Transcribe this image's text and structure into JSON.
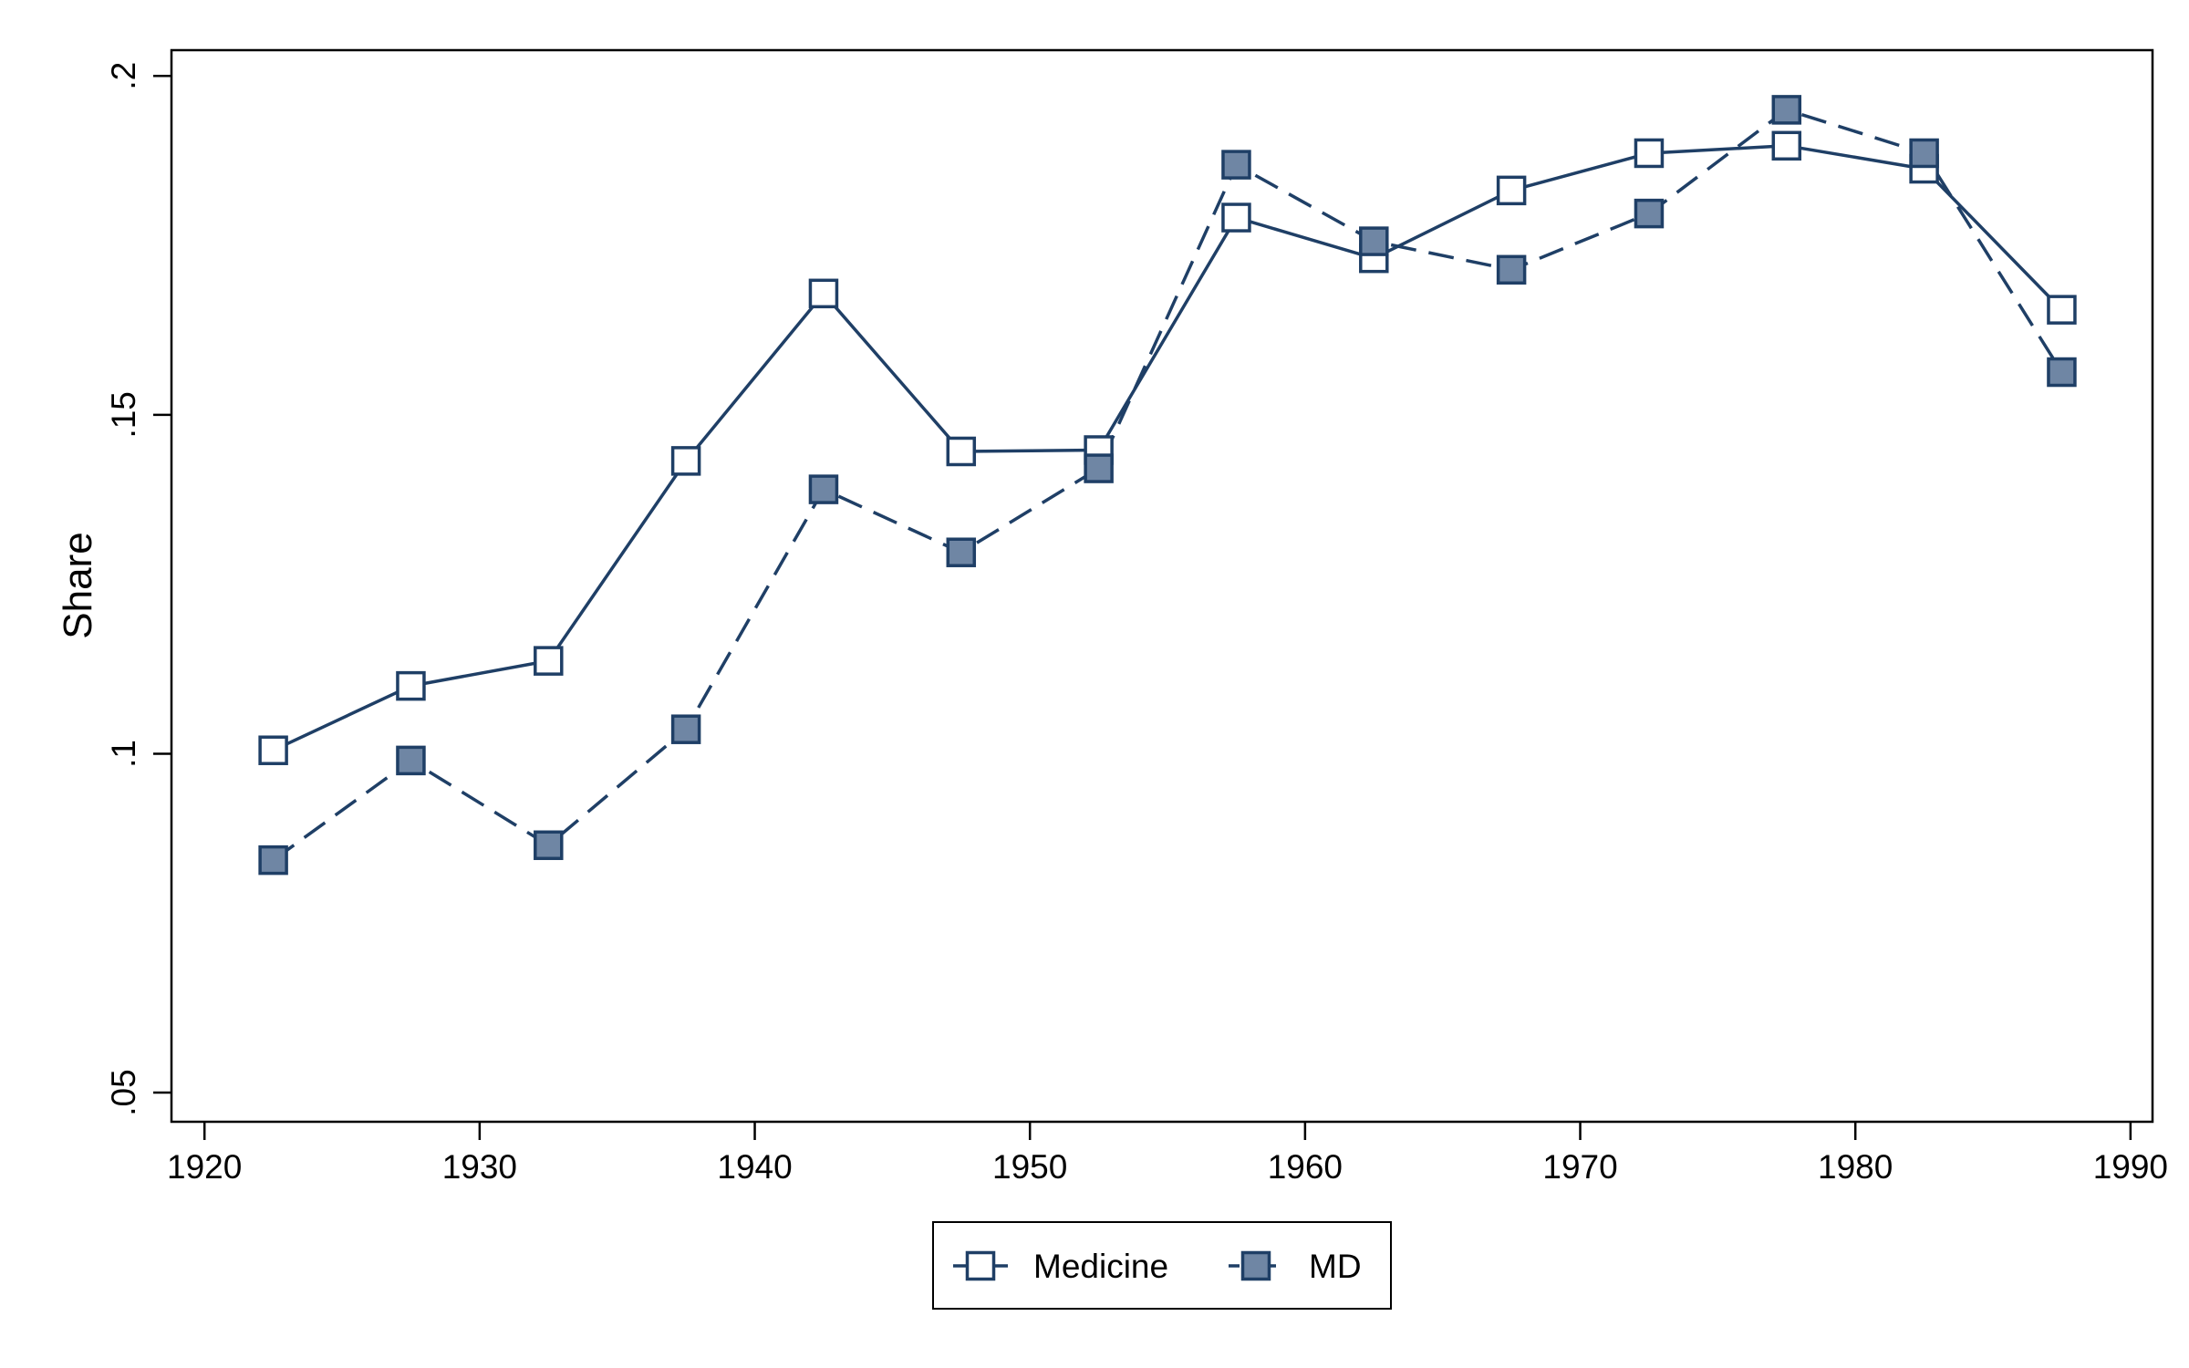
{
  "chart_data": {
    "type": "line",
    "title": "",
    "xlabel": "",
    "ylabel": "Share",
    "xlim": [
      1918.8,
      1990.8
    ],
    "ylim": [
      0.0457,
      0.2038
    ],
    "xticks": [
      1920,
      1930,
      1940,
      1950,
      1960,
      1970,
      1980,
      1990
    ],
    "xtick_labels": [
      "1920",
      "1930",
      "1940",
      "1950",
      "1960",
      "1970",
      "1980",
      "1990"
    ],
    "yticks": [
      0.05,
      0.1,
      0.15,
      0.2
    ],
    "ytick_labels": [
      ".05",
      ".1",
      ".15",
      ".2"
    ],
    "grid": false,
    "legend_position": "bottom",
    "x": [
      1922.5,
      1927.5,
      1932.5,
      1937.5,
      1942.5,
      1947.5,
      1952.5,
      1957.5,
      1962.5,
      1967.5,
      1972.5,
      1977.5,
      1982.5,
      1987.5
    ],
    "series": [
      {
        "name": "Medicine",
        "style": "solid",
        "marker": "hollow-square",
        "color": "#1f3f66",
        "values": [
          0.1005,
          0.11,
          0.1137,
          0.1432,
          0.1679,
          0.1446,
          0.1448,
          0.1791,
          0.1731,
          0.1831,
          0.1886,
          0.1897,
          0.1863,
          0.1655
        ]
      },
      {
        "name": "MD",
        "style": "dashed",
        "marker": "filled-square",
        "color": "#1f3f66",
        "fill": "#6f86a4",
        "values": [
          0.0843,
          0.099,
          0.0865,
          0.1036,
          0.139,
          0.1297,
          0.1421,
          0.1869,
          0.1756,
          0.1714,
          0.1797,
          0.195,
          0.1886,
          0.1563
        ]
      }
    ]
  }
}
